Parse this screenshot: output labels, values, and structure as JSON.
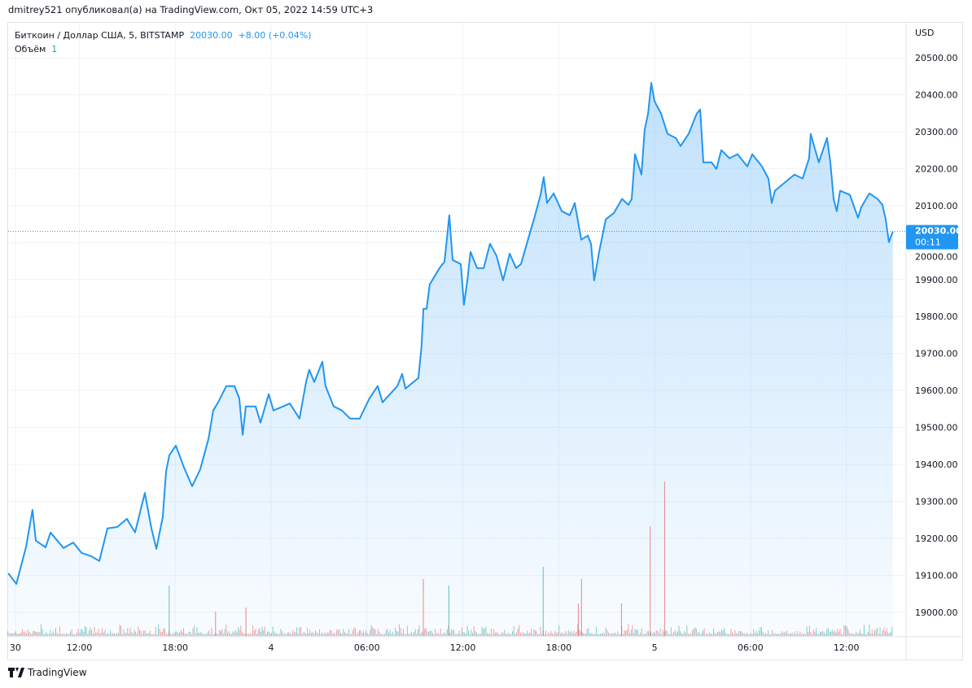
{
  "publisher_line": "dmitrey521 опубликовал(а) на TradingView.com, Окт 05, 2022 14:59 UTC+3",
  "legend": {
    "symbol": "Биткоин / Доллар США, 5, BITSTAMP",
    "price": "20030.00",
    "change": "+8.00 (+0.04%)",
    "volume_label": "Объём",
    "volume_value": "1"
  },
  "footer": {
    "logo_text": "TradingView"
  },
  "colors": {
    "line": "#2196f3",
    "up": "#26a69a",
    "down": "#ef5350"
  },
  "chart_data": {
    "type": "area",
    "currency": "USD",
    "x_unit": "hours from Oct 4 00:00",
    "ylim": [
      19000,
      20500
    ],
    "xlim": [
      -16.6,
      39.8
    ],
    "yticks": [
      "19000.00",
      "19100.00",
      "19200.00",
      "19300.00",
      "19400.00",
      "19500.00",
      "19600.00",
      "19700.00",
      "19800.00",
      "19900.00",
      "20000.00",
      "20100.00",
      "20200.00",
      "20300.00",
      "20400.00",
      "20500.00"
    ],
    "xticks": [
      {
        "h": -16,
        "label": "30"
      },
      {
        "h": -12,
        "label": "12:00"
      },
      {
        "h": -6,
        "label": "18:00"
      },
      {
        "h": 0,
        "label": "4"
      },
      {
        "h": 6,
        "label": "06:00"
      },
      {
        "h": 12,
        "label": "12:00"
      },
      {
        "h": 18,
        "label": "18:00"
      },
      {
        "h": 24,
        "label": "5"
      },
      {
        "h": 30,
        "label": "06:00"
      },
      {
        "h": 36,
        "label": "12:00"
      }
    ],
    "last_price": {
      "value": 20030,
      "label": "20030.00",
      "countdown": "00:11"
    },
    "price": [
      [
        -16.45,
        19106
      ],
      [
        -15.94,
        19077
      ],
      [
        -15.33,
        19178
      ],
      [
        -14.93,
        19277
      ],
      [
        -14.72,
        19194
      ],
      [
        -14.11,
        19176
      ],
      [
        -13.8,
        19216
      ],
      [
        -12.99,
        19174
      ],
      [
        -12.38,
        19189
      ],
      [
        -11.87,
        19161
      ],
      [
        -11.26,
        19152
      ],
      [
        -10.75,
        19139
      ],
      [
        -10.24,
        19227
      ],
      [
        -9.63,
        19231
      ],
      [
        -9.02,
        19253
      ],
      [
        -8.51,
        19216
      ],
      [
        -7.9,
        19323
      ],
      [
        -7.49,
        19227
      ],
      [
        -7.18,
        19172
      ],
      [
        -6.78,
        19257
      ],
      [
        -6.57,
        19381
      ],
      [
        -6.37,
        19425
      ],
      [
        -5.96,
        19451
      ],
      [
        -5.45,
        19392
      ],
      [
        -4.94,
        19341
      ],
      [
        -4.43,
        19387
      ],
      [
        -3.92,
        19469
      ],
      [
        -3.62,
        19546
      ],
      [
        -3.31,
        19568
      ],
      [
        -2.8,
        19612
      ],
      [
        -2.29,
        19612
      ],
      [
        -1.99,
        19579
      ],
      [
        -1.78,
        19480
      ],
      [
        -1.58,
        19557
      ],
      [
        -0.97,
        19557
      ],
      [
        -0.66,
        19513
      ],
      [
        -0.15,
        19590
      ],
      [
        0.15,
        19546
      ],
      [
        0.76,
        19557
      ],
      [
        1.17,
        19565
      ],
      [
        1.78,
        19524
      ],
      [
        2.19,
        19623
      ],
      [
        2.39,
        19656
      ],
      [
        2.7,
        19623
      ],
      [
        3.21,
        19678
      ],
      [
        3.41,
        19612
      ],
      [
        3.92,
        19557
      ],
      [
        4.43,
        19546
      ],
      [
        4.94,
        19524
      ],
      [
        5.55,
        19524
      ],
      [
        6.16,
        19579
      ],
      [
        6.67,
        19612
      ],
      [
        6.98,
        19568
      ],
      [
        7.9,
        19612
      ],
      [
        8.2,
        19645
      ],
      [
        8.41,
        19605
      ],
      [
        9.22,
        19634
      ],
      [
        9.42,
        19722
      ],
      [
        9.53,
        19821
      ],
      [
        9.73,
        19821
      ],
      [
        9.93,
        19887
      ],
      [
        10.54,
        19931
      ],
      [
        10.85,
        19948
      ],
      [
        11.05,
        20030
      ],
      [
        11.15,
        20074
      ],
      [
        11.36,
        19953
      ],
      [
        11.87,
        19942
      ],
      [
        12.07,
        19832
      ],
      [
        12.28,
        19898
      ],
      [
        12.48,
        19975
      ],
      [
        12.89,
        19931
      ],
      [
        13.3,
        19931
      ],
      [
        13.7,
        19997
      ],
      [
        14.11,
        19964
      ],
      [
        14.52,
        19898
      ],
      [
        14.93,
        19970
      ],
      [
        15.33,
        19931
      ],
      [
        15.64,
        19942
      ],
      [
        16.15,
        20019
      ],
      [
        16.45,
        20063
      ],
      [
        16.86,
        20129
      ],
      [
        17.06,
        20177
      ],
      [
        17.27,
        20107
      ],
      [
        17.68,
        20133
      ],
      [
        18.19,
        20085
      ],
      [
        18.69,
        20074
      ],
      [
        19.0,
        20107
      ],
      [
        19.41,
        20008
      ],
      [
        19.82,
        20019
      ],
      [
        20.02,
        19997
      ],
      [
        20.22,
        19898
      ],
      [
        20.53,
        19975
      ],
      [
        20.94,
        20063
      ],
      [
        21.45,
        20080
      ],
      [
        21.96,
        20118
      ],
      [
        22.36,
        20102
      ],
      [
        22.57,
        20118
      ],
      [
        22.77,
        20239
      ],
      [
        23.18,
        20184
      ],
      [
        23.38,
        20305
      ],
      [
        23.59,
        20349
      ],
      [
        23.79,
        20432
      ],
      [
        24.0,
        20382
      ],
      [
        24.4,
        20349
      ],
      [
        24.81,
        20294
      ],
      [
        25.32,
        20283
      ],
      [
        25.63,
        20261
      ],
      [
        26.13,
        20294
      ],
      [
        26.64,
        20349
      ],
      [
        26.85,
        20360
      ],
      [
        27.05,
        20217
      ],
      [
        27.56,
        20217
      ],
      [
        27.87,
        20199
      ],
      [
        28.17,
        20250
      ],
      [
        28.68,
        20228
      ],
      [
        29.19,
        20239
      ],
      [
        29.8,
        20206
      ],
      [
        30.11,
        20239
      ],
      [
        30.72,
        20206
      ],
      [
        31.12,
        20173
      ],
      [
        31.33,
        20107
      ],
      [
        31.53,
        20140
      ],
      [
        32.14,
        20162
      ],
      [
        32.75,
        20184
      ],
      [
        33.26,
        20173
      ],
      [
        33.67,
        20228
      ],
      [
        33.77,
        20294
      ],
      [
        33.98,
        20261
      ],
      [
        34.28,
        20217
      ],
      [
        34.79,
        20283
      ],
      [
        35.0,
        20217
      ],
      [
        35.2,
        20118
      ],
      [
        35.4,
        20085
      ],
      [
        35.61,
        20140
      ],
      [
        36.22,
        20129
      ],
      [
        36.73,
        20067
      ],
      [
        36.94,
        20096
      ],
      [
        37.44,
        20133
      ],
      [
        37.95,
        20118
      ],
      [
        38.26,
        20102
      ],
      [
        38.46,
        20063
      ],
      [
        38.66,
        20001
      ],
      [
        38.91,
        20030
      ]
    ],
    "volume_spikes": [
      [
        -6.4,
        62,
        "up"
      ],
      [
        -3.5,
        30,
        "down"
      ],
      [
        -1.6,
        35,
        "down"
      ],
      [
        9.5,
        70,
        "down"
      ],
      [
        11.1,
        62,
        "up"
      ],
      [
        17.0,
        85,
        "up"
      ],
      [
        19.2,
        40,
        "down"
      ],
      [
        19.4,
        70,
        "down"
      ],
      [
        21.9,
        40,
        "down"
      ],
      [
        23.7,
        135,
        "down"
      ],
      [
        24.6,
        190,
        "down"
      ]
    ]
  }
}
